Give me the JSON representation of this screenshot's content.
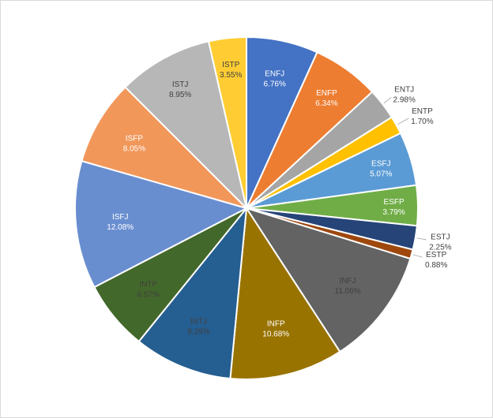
{
  "chart_data": {
    "type": "pie",
    "title": "",
    "slices": [
      {
        "label": "ENFJ",
        "value": 6.76,
        "display": "6.76%",
        "color": "#4472c4",
        "label_color": "#ffffff"
      },
      {
        "label": "ENFP",
        "value": 6.34,
        "display": "6.34%",
        "color": "#ed7d31",
        "label_color": "#ffffff"
      },
      {
        "label": "ENTJ",
        "value": 2.98,
        "display": "2.98%",
        "color": "#a5a5a5",
        "label_color": "#404040"
      },
      {
        "label": "ENTP",
        "value": 1.7,
        "display": "1.70%",
        "color": "#ffc000",
        "label_color": "#404040"
      },
      {
        "label": "ESFJ",
        "value": 5.07,
        "display": "5.07%",
        "color": "#5b9bd5",
        "label_color": "#ffffff"
      },
      {
        "label": "ESFP",
        "value": 3.79,
        "display": "3.79%",
        "color": "#70ad47",
        "label_color": "#ffffff"
      },
      {
        "label": "ESTJ",
        "value": 2.25,
        "display": "2.25%",
        "color": "#264478",
        "label_color": "#404040"
      },
      {
        "label": "ESTP",
        "value": 0.88,
        "display": "0.88%",
        "color": "#9e480e",
        "label_color": "#404040"
      },
      {
        "label": "INFJ",
        "value": 11.06,
        "display": "11.06%",
        "color": "#636363",
        "label_color": "#404040"
      },
      {
        "label": "INFP",
        "value": 10.68,
        "display": "10.68%",
        "color": "#997300",
        "label_color": "#ffffff"
      },
      {
        "label": "INTJ",
        "value": 9.29,
        "display": "9.29%",
        "color": "#255e91",
        "label_color": "#404040"
      },
      {
        "label": "INTP",
        "value": 6.57,
        "display": "6.57%",
        "color": "#43682b",
        "label_color": "#404040"
      },
      {
        "label": "ISFJ",
        "value": 12.08,
        "display": "12.08%",
        "color": "#698ed0",
        "label_color": "#ffffff"
      },
      {
        "label": "ISFP",
        "value": 8.05,
        "display": "8.05%",
        "color": "#f1975a",
        "label_color": "#ffffff"
      },
      {
        "label": "ISTJ",
        "value": 8.95,
        "display": "8.95%",
        "color": "#b7b7b7",
        "label_color": "#404040"
      },
      {
        "label": "ISTP",
        "value": 3.55,
        "display": "3.55%",
        "color": "#ffcd33",
        "label_color": "#404040"
      }
    ],
    "start": "top",
    "direction": "clockwise",
    "legend": "none"
  }
}
